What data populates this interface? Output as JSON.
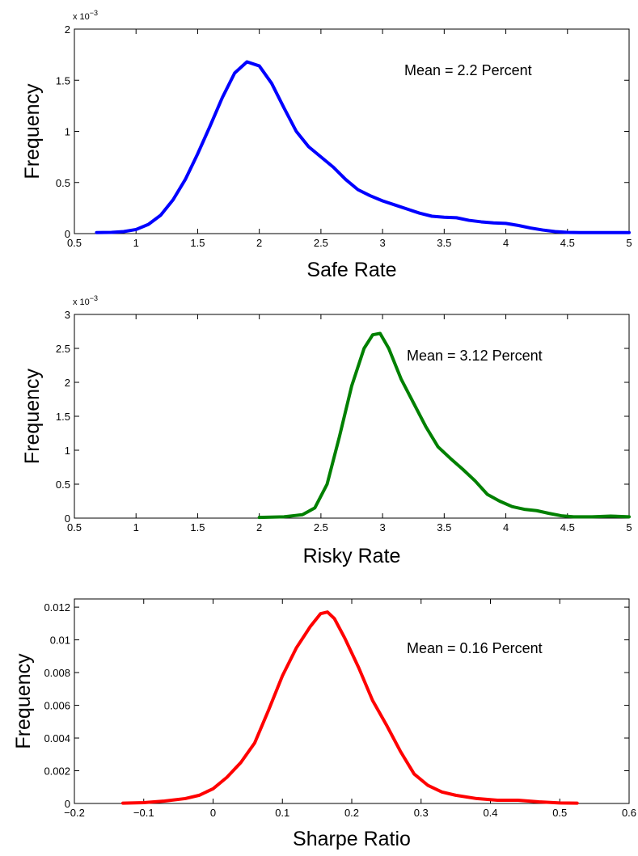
{
  "chart_data": [
    {
      "type": "line",
      "title": "",
      "xlabel": "Safe Rate",
      "ylabel": "Frequency",
      "xlim": [
        0.5,
        5
      ],
      "ylim": [
        0,
        2
      ],
      "y_scale_note": {
        "base": "x 10",
        "exponent": "−3"
      },
      "xticks": [
        "0.5",
        "1",
        "1.5",
        "2",
        "2.5",
        "3",
        "3.5",
        "4",
        "4.5",
        "5"
      ],
      "xtick_values": [
        0.5,
        1,
        1.5,
        2,
        2.5,
        3,
        3.5,
        4,
        4.5,
        5
      ],
      "yticks": [
        "0",
        "0.5",
        "1",
        "1.5",
        "2"
      ],
      "ytick_values": [
        0,
        0.5,
        1,
        1.5,
        2
      ],
      "annotation": "Mean = 2.2 Percent",
      "grid": false,
      "color": "#0000ff",
      "series": [
        {
          "x": [
            0.68,
            0.8,
            0.9,
            1.0,
            1.1,
            1.2,
            1.3,
            1.4,
            1.5,
            1.6,
            1.7,
            1.8,
            1.9,
            2.0,
            2.1,
            2.2,
            2.3,
            2.4,
            2.5,
            2.6,
            2.7,
            2.8,
            2.9,
            3.0,
            3.1,
            3.2,
            3.3,
            3.4,
            3.5,
            3.6,
            3.7,
            3.8,
            3.9,
            4.0,
            4.1,
            4.2,
            4.3,
            4.4,
            4.5,
            4.6,
            4.8,
            5.0
          ],
          "y": [
            0.01,
            0.012,
            0.02,
            0.04,
            0.09,
            0.18,
            0.33,
            0.53,
            0.78,
            1.05,
            1.33,
            1.57,
            1.68,
            1.64,
            1.47,
            1.23,
            1.0,
            0.85,
            0.75,
            0.65,
            0.53,
            0.43,
            0.37,
            0.32,
            0.28,
            0.24,
            0.2,
            0.17,
            0.16,
            0.155,
            0.13,
            0.115,
            0.105,
            0.1,
            0.08,
            0.055,
            0.035,
            0.02,
            0.012,
            0.01,
            0.01,
            0.01
          ]
        }
      ]
    },
    {
      "type": "line",
      "title": "",
      "xlabel": "Risky Rate",
      "ylabel": "Frequency",
      "xlim": [
        0.5,
        5
      ],
      "ylim": [
        0,
        3
      ],
      "y_scale_note": {
        "base": "x 10",
        "exponent": "−3"
      },
      "xticks": [
        "0.5",
        "1",
        "1.5",
        "2",
        "2.5",
        "3",
        "3.5",
        "4",
        "4.5",
        "5"
      ],
      "xtick_values": [
        0.5,
        1,
        1.5,
        2,
        2.5,
        3,
        3.5,
        4,
        4.5,
        5
      ],
      "yticks": [
        "0",
        "0.5",
        "1",
        "1.5",
        "2",
        "2.5",
        "3"
      ],
      "ytick_values": [
        0,
        0.5,
        1,
        1.5,
        2,
        2.5,
        3
      ],
      "annotation": "Mean = 3.12 Percent",
      "grid": false,
      "color": "#008000",
      "series": [
        {
          "x": [
            2.0,
            2.2,
            2.35,
            2.45,
            2.55,
            2.65,
            2.75,
            2.85,
            2.92,
            2.98,
            3.05,
            3.15,
            3.25,
            3.35,
            3.45,
            3.55,
            3.65,
            3.75,
            3.85,
            3.95,
            4.05,
            4.15,
            4.25,
            4.35,
            4.45,
            4.55,
            4.7,
            4.85,
            5.0
          ],
          "y": [
            0.01,
            0.02,
            0.05,
            0.15,
            0.5,
            1.2,
            1.95,
            2.5,
            2.7,
            2.72,
            2.5,
            2.05,
            1.7,
            1.35,
            1.05,
            0.88,
            0.72,
            0.55,
            0.35,
            0.25,
            0.17,
            0.13,
            0.11,
            0.07,
            0.035,
            0.02,
            0.02,
            0.03,
            0.02
          ]
        }
      ]
    },
    {
      "type": "line",
      "title": "",
      "xlabel": "Sharpe Ratio",
      "ylabel": "Frequency",
      "xlim": [
        -0.2,
        0.6
      ],
      "ylim": [
        0,
        0.0125
      ],
      "xticks": [
        "−0.2",
        "−0.1",
        "0",
        "0.1",
        "0.2",
        "0.3",
        "0.4",
        "0.5",
        "0.6"
      ],
      "xtick_values": [
        -0.2,
        -0.1,
        0,
        0.1,
        0.2,
        0.3,
        0.4,
        0.5,
        0.6
      ],
      "yticks": [
        "0",
        "0.002",
        "0.004",
        "0.006",
        "0.008",
        "0.01",
        "0.012"
      ],
      "ytick_values": [
        0,
        0.002,
        0.004,
        0.006,
        0.008,
        0.01,
        0.012
      ],
      "annotation": "Mean = 0.16 Percent",
      "grid": false,
      "color": "#ff0000",
      "series": [
        {
          "x": [
            -0.13,
            -0.1,
            -0.07,
            -0.04,
            -0.02,
            0.0,
            0.02,
            0.04,
            0.06,
            0.08,
            0.1,
            0.12,
            0.14,
            0.155,
            0.165,
            0.175,
            0.19,
            0.21,
            0.23,
            0.25,
            0.27,
            0.29,
            0.31,
            0.33,
            0.35,
            0.38,
            0.41,
            0.44,
            0.47,
            0.5,
            0.525
          ],
          "y": [
            2e-05,
            5e-05,
            0.00015,
            0.0003,
            0.0005,
            0.0009,
            0.0016,
            0.0025,
            0.0037,
            0.0057,
            0.0078,
            0.0095,
            0.0108,
            0.0116,
            0.0117,
            0.0113,
            0.0101,
            0.0083,
            0.0063,
            0.0048,
            0.0032,
            0.0018,
            0.0011,
            0.0007,
            0.0005,
            0.0003,
            0.0002,
            0.0002,
            0.0001,
            3e-05,
            2e-05
          ]
        }
      ]
    }
  ]
}
